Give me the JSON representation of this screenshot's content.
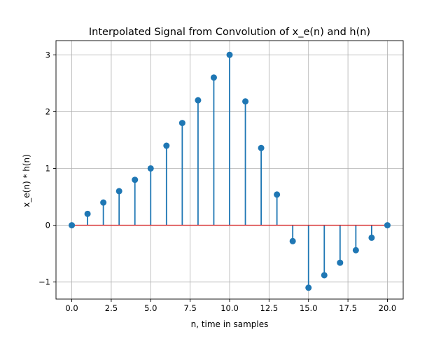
{
  "chart_data": {
    "type": "stem",
    "title": "Interpolated Signal from Convolution of x_e(n) and h(n)",
    "xlabel": "n, time in samples",
    "ylabel": "x_e(n) * h(n)",
    "xlim": [
      -1.0,
      21.0
    ],
    "ylim": [
      -1.3,
      3.25
    ],
    "xticks": [
      0.0,
      2.5,
      5.0,
      7.5,
      10.0,
      12.5,
      15.0,
      17.5,
      20.0
    ],
    "xtick_labels": [
      "0.0",
      "2.5",
      "5.0",
      "7.5",
      "10.0",
      "12.5",
      "15.0",
      "17.5",
      "20.0"
    ],
    "yticks": [
      -1,
      0,
      1,
      2,
      3
    ],
    "ytick_labels": [
      "−1",
      "0",
      "1",
      "2",
      "3"
    ],
    "grid": true,
    "baseline": 0,
    "color": "#1f77b4",
    "series": [
      {
        "x": [
          0,
          1,
          2,
          3,
          4,
          5,
          6,
          7,
          8,
          9,
          10,
          11,
          12,
          13,
          14,
          15,
          16,
          17,
          18,
          19,
          20
        ],
        "y": [
          0,
          0.2,
          0.4,
          0.6,
          0.8,
          1.0,
          1.4,
          1.8,
          2.2,
          2.6,
          3.0,
          2.18,
          1.36,
          0.54,
          -0.28,
          -1.1,
          -0.88,
          -0.66,
          -0.44,
          -0.22,
          0
        ]
      }
    ]
  }
}
